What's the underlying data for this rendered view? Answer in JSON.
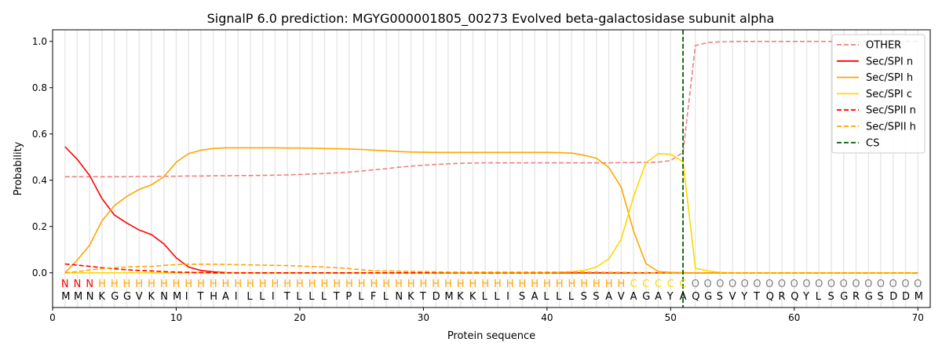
{
  "chart_data": {
    "type": "line",
    "title": "SignalP 6.0 prediction: MGYG000001805_00273 Evolved beta-galactosidase subunit alpha",
    "xlabel": "Protein sequence",
    "ylabel": "Probability",
    "xlim": [
      0,
      71
    ],
    "ylim": [
      -0.15,
      1.05
    ],
    "xticks": [
      0,
      10,
      20,
      30,
      40,
      50,
      60,
      70
    ],
    "yticks": [
      0.0,
      0.2,
      0.4,
      0.6,
      0.8,
      1.0
    ],
    "ytick_labels": [
      "0.0",
      "0.2",
      "0.4",
      "0.6",
      "0.8",
      "1.0"
    ],
    "legend_position": "top-right",
    "sequence": "MMNKGGVKNMITHAILLITLLLTPLFLNKTDMKKLLISALLLSSAVAGAYAQGSVYTQRQYLSGRGSDDM",
    "labels": "NNNHHHHHHHHHHHHHHHHHHHHHHHHHHHHHHHHHHHHHHHHHHHCCCCCOOOOOOOOOOOOOOOOOOO",
    "label_colors": {
      "N": "#ff0000",
      "H": "#ffa500",
      "C": "#ffd700",
      "O": "#808080"
    },
    "cleavage_site": 51,
    "series": [
      {
        "name": "OTHER",
        "color": "#f08080",
        "dash": true,
        "values": [
          0.415,
          0.415,
          0.415,
          0.415,
          0.415,
          0.415,
          0.416,
          0.416,
          0.417,
          0.417,
          0.418,
          0.418,
          0.419,
          0.419,
          0.42,
          0.42,
          0.421,
          0.422,
          0.423,
          0.425,
          0.427,
          0.429,
          0.432,
          0.435,
          0.44,
          0.445,
          0.45,
          0.456,
          0.461,
          0.465,
          0.468,
          0.471,
          0.473,
          0.474,
          0.475,
          0.475,
          0.475,
          0.475,
          0.475,
          0.475,
          0.475,
          0.475,
          0.475,
          0.475,
          0.475,
          0.476,
          0.476,
          0.477,
          0.478,
          0.485,
          0.52,
          0.982,
          0.995,
          0.998,
          0.999,
          1.0,
          1.0,
          1.0,
          1.0,
          1.0,
          1.0,
          1.0,
          1.0,
          1.0,
          1.0,
          1.0,
          1.0,
          1.0,
          1.0,
          1.0
        ]
      },
      {
        "name": "Sec/SPI n",
        "color": "#ff0000",
        "dash": false,
        "values": [
          0.545,
          0.49,
          0.42,
          0.32,
          0.25,
          0.215,
          0.185,
          0.165,
          0.125,
          0.065,
          0.025,
          0.01,
          0.004,
          0.001,
          0,
          0,
          0,
          0,
          0,
          0,
          0,
          0,
          0,
          0,
          0,
          0,
          0,
          0,
          0,
          0,
          0,
          0,
          0,
          0,
          0,
          0,
          0,
          0,
          0,
          0,
          0,
          0,
          0,
          0,
          0,
          0,
          0,
          0,
          0,
          0,
          0,
          0,
          0,
          0,
          0,
          0,
          0,
          0,
          0,
          0,
          0,
          0,
          0,
          0,
          0,
          0,
          0,
          0,
          0,
          0
        ]
      },
      {
        "name": "Sec/SPI h",
        "color": "#ffa500",
        "dash": false,
        "values": [
          0.0,
          0.055,
          0.12,
          0.225,
          0.29,
          0.33,
          0.36,
          0.38,
          0.415,
          0.478,
          0.515,
          0.53,
          0.537,
          0.54,
          0.54,
          0.54,
          0.54,
          0.54,
          0.539,
          0.539,
          0.538,
          0.537,
          0.536,
          0.535,
          0.533,
          0.53,
          0.527,
          0.524,
          0.522,
          0.521,
          0.52,
          0.52,
          0.52,
          0.52,
          0.52,
          0.52,
          0.52,
          0.52,
          0.52,
          0.52,
          0.519,
          0.517,
          0.508,
          0.495,
          0.455,
          0.37,
          0.18,
          0.04,
          0.005,
          0.002,
          0.001,
          0,
          0,
          0,
          0,
          0,
          0,
          0,
          0,
          0,
          0,
          0,
          0,
          0,
          0,
          0,
          0,
          0,
          0,
          0
        ]
      },
      {
        "name": "Sec/SPI c",
        "color": "#ffd700",
        "dash": false,
        "values": [
          0,
          0,
          0,
          0,
          0,
          0,
          0,
          0,
          0,
          0,
          0,
          0,
          0,
          0,
          0,
          0,
          0,
          0,
          0,
          0,
          0,
          0,
          0,
          0,
          0,
          0,
          0,
          0,
          0,
          0,
          0,
          0,
          0,
          0,
          0,
          0,
          0,
          0,
          0,
          0,
          0.002,
          0.005,
          0.01,
          0.025,
          0.06,
          0.145,
          0.33,
          0.475,
          0.515,
          0.512,
          0.48,
          0.02,
          0.008,
          0.002,
          0,
          0,
          0,
          0,
          0,
          0,
          0,
          0,
          0,
          0,
          0,
          0,
          0,
          0,
          0,
          0
        ]
      },
      {
        "name": "Sec/SPII n",
        "color": "#ff0000",
        "dash": true,
        "values": [
          0.038,
          0.033,
          0.028,
          0.022,
          0.017,
          0.013,
          0.01,
          0.008,
          0.005,
          0.003,
          0.002,
          0.001,
          0,
          0,
          0,
          0,
          0,
          0,
          0,
          0,
          0,
          0,
          0,
          0,
          0,
          0,
          0,
          0,
          0,
          0,
          0,
          0,
          0,
          0,
          0,
          0,
          0,
          0,
          0,
          0,
          0,
          0,
          0,
          0,
          0,
          0,
          0,
          0,
          0,
          0,
          0,
          0,
          0,
          0,
          0,
          0,
          0,
          0,
          0,
          0,
          0,
          0,
          0,
          0,
          0,
          0,
          0,
          0,
          0,
          0
        ]
      },
      {
        "name": "Sec/SPII h",
        "color": "#ffa500",
        "dash": true,
        "values": [
          0.0,
          0.005,
          0.012,
          0.018,
          0.022,
          0.025,
          0.027,
          0.028,
          0.032,
          0.035,
          0.037,
          0.037,
          0.037,
          0.036,
          0.035,
          0.034,
          0.033,
          0.032,
          0.031,
          0.029,
          0.027,
          0.025,
          0.022,
          0.018,
          0.013,
          0.009,
          0.008,
          0.007,
          0.006,
          0.005,
          0.004,
          0.003,
          0.003,
          0.003,
          0.003,
          0.003,
          0.003,
          0.003,
          0.003,
          0.003,
          0.003,
          0.003,
          0.003,
          0.003,
          0.002,
          0.002,
          0.001,
          0.001,
          0,
          0,
          0,
          0,
          0,
          0,
          0,
          0,
          0,
          0,
          0,
          0,
          0,
          0,
          0,
          0,
          0,
          0,
          0,
          0,
          0,
          0
        ]
      }
    ],
    "cs_legend": {
      "name": "CS",
      "color": "#006400"
    }
  }
}
